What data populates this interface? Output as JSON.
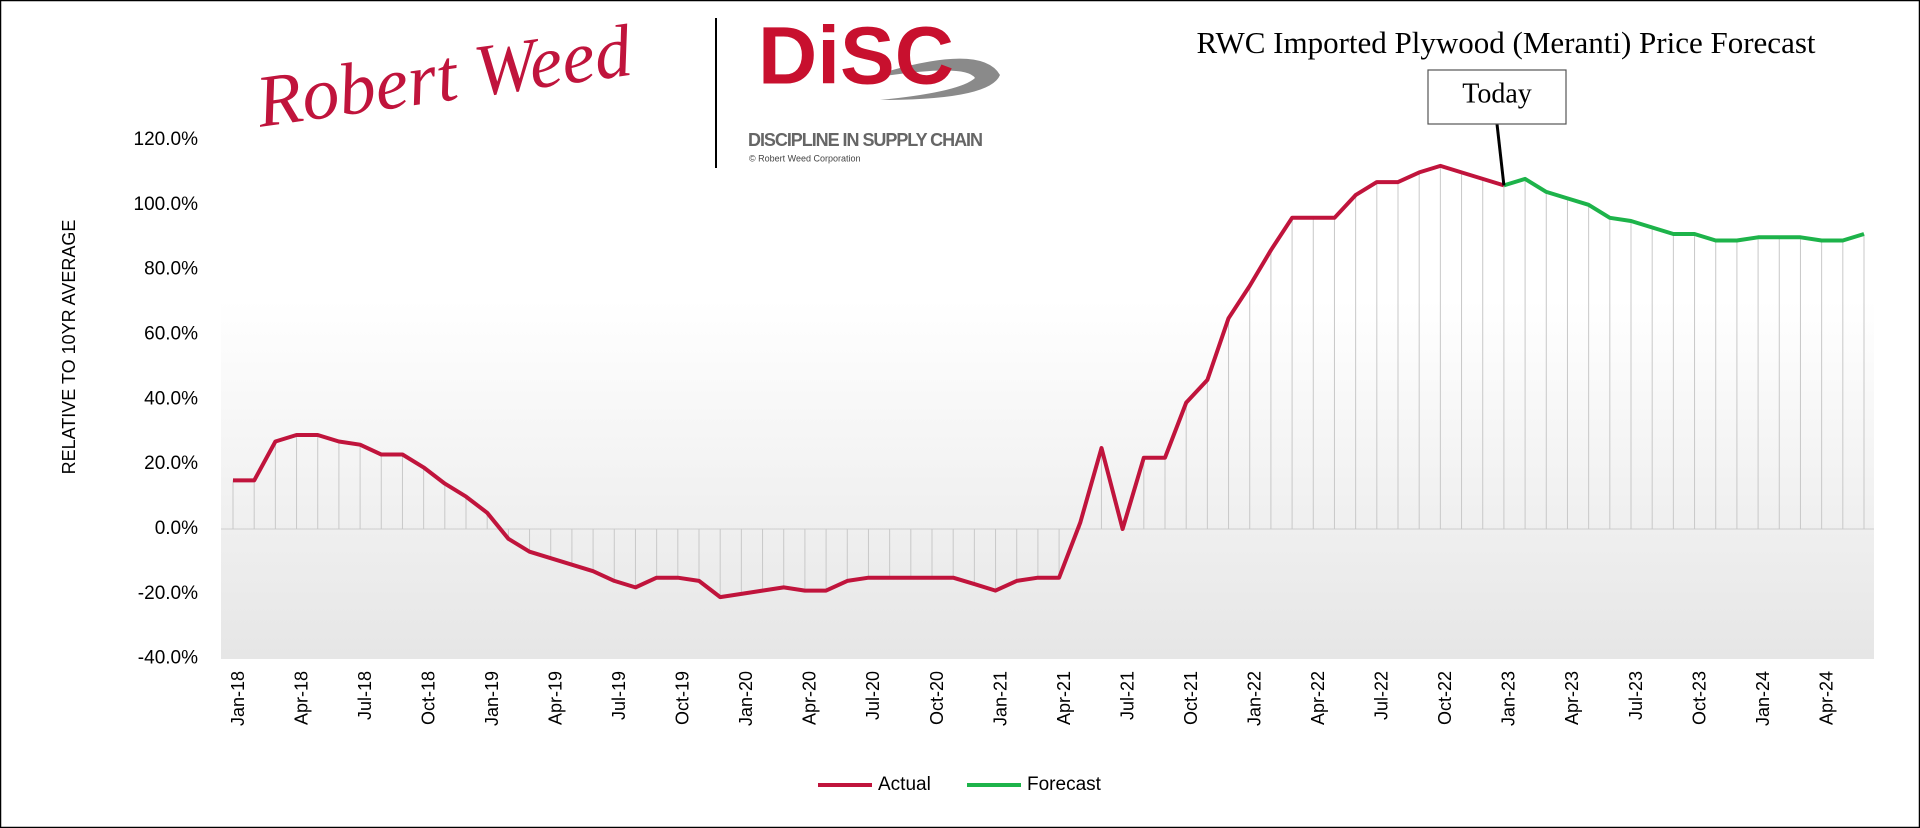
{
  "logo": {
    "brand": "Robert Weed",
    "mark": "DiSC",
    "tagline": "DISCIPLINE IN SUPPLY CHAIN",
    "copyright": "© Robert Weed Corporation"
  },
  "chart_data": {
    "type": "line",
    "title": "RWC Imported Plywood (Meranti) Price Forecast",
    "y_label": "RELATIVE TO 10YR AVERAGE",
    "annotation": {
      "text": "Today",
      "index": 60
    },
    "categories": [
      "Jan-18",
      null,
      null,
      "Apr-18",
      null,
      null,
      "Jul-18",
      null,
      null,
      "Oct-18",
      null,
      null,
      "Jan-19",
      null,
      null,
      "Apr-19",
      null,
      null,
      "Jul-19",
      null,
      null,
      "Oct-19",
      null,
      null,
      "Jan-20",
      null,
      null,
      "Apr-20",
      null,
      null,
      "Jul-20",
      null,
      null,
      "Oct-20",
      null,
      null,
      "Jan-21",
      null,
      null,
      "Apr-21",
      null,
      null,
      "Jul-21",
      null,
      null,
      "Oct-21",
      null,
      null,
      "Jan-22",
      null,
      null,
      "Apr-22",
      null,
      null,
      "Jul-22",
      null,
      null,
      "Oct-22",
      null,
      null,
      "Jan-23",
      null,
      null,
      "Apr-23",
      null,
      null,
      "Jul-23",
      null,
      null,
      "Oct-23",
      null,
      null,
      "Jan-24",
      null,
      null,
      "Apr-24",
      null,
      null
    ],
    "series": [
      {
        "name": "Actual",
        "color": "#c0143c",
        "values": [
          15,
          15,
          27,
          29,
          29,
          27,
          26,
          23,
          23,
          19,
          14,
          10,
          5,
          -3,
          -7,
          -9,
          -11,
          -13,
          -16,
          -18,
          -15,
          -15,
          -16,
          -21,
          -20,
          -19,
          -18,
          -19,
          -19,
          -16,
          -15,
          -15,
          -15,
          -15,
          -15,
          -17,
          -19,
          -16,
          -15,
          -15,
          2,
          25,
          0,
          22,
          22,
          39,
          46,
          65,
          75,
          86,
          96,
          96,
          96,
          103,
          107,
          107,
          110,
          112,
          110,
          108,
          106,
          null,
          null,
          null,
          null,
          null,
          null,
          null,
          null,
          null,
          null,
          null,
          null,
          null,
          null,
          null,
          null,
          null
        ]
      },
      {
        "name": "Forecast",
        "color": "#1db34a",
        "values": [
          null,
          null,
          null,
          null,
          null,
          null,
          null,
          null,
          null,
          null,
          null,
          null,
          null,
          null,
          null,
          null,
          null,
          null,
          null,
          null,
          null,
          null,
          null,
          null,
          null,
          null,
          null,
          null,
          null,
          null,
          null,
          null,
          null,
          null,
          null,
          null,
          null,
          null,
          null,
          null,
          null,
          null,
          null,
          null,
          null,
          null,
          null,
          null,
          null,
          null,
          null,
          null,
          null,
          null,
          null,
          null,
          null,
          null,
          null,
          null,
          106,
          108,
          104,
          102,
          100,
          96,
          95,
          93,
          91,
          91,
          89,
          89,
          90,
          90,
          90,
          89,
          89,
          91
        ]
      }
    ],
    "ylim": [
      -40,
      120
    ],
    "yticks": [
      {
        "value": -40,
        "label": "-40.0%"
      },
      {
        "value": -20,
        "label": "-20.0%"
      },
      {
        "value": 0,
        "label": "0.0%"
      },
      {
        "value": 20,
        "label": "20.0%"
      },
      {
        "value": 40,
        "label": "40.0%"
      },
      {
        "value": 60,
        "label": "60.0%"
      },
      {
        "value": 80,
        "label": "80.0%"
      },
      {
        "value": 100,
        "label": "100.0%"
      },
      {
        "value": 120,
        "label": "120.0%"
      }
    ],
    "drop_lines": true,
    "legend": "bottom"
  }
}
